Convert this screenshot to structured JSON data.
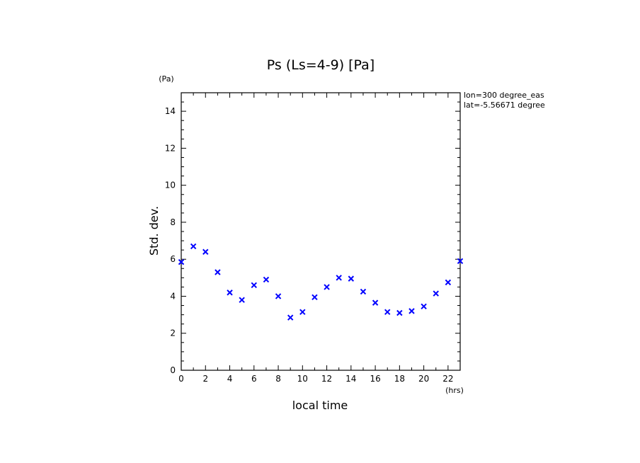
{
  "chart_data": {
    "type": "scatter",
    "title": "Ps (Ls=4-9) [Pa]",
    "xlabel": "local time",
    "ylabel": "Std. dev.",
    "x_unit": "(hrs)",
    "y_unit": "(Pa)",
    "annotations": [
      "lon=300 degree_eas",
      "lat=-5.56671 degree"
    ],
    "xlim": [
      0,
      23
    ],
    "ylim": [
      0,
      15
    ],
    "xticks": [
      0,
      2,
      4,
      6,
      8,
      10,
      12,
      14,
      16,
      18,
      20,
      22
    ],
    "yticks": [
      0,
      2,
      4,
      6,
      8,
      10,
      12,
      14
    ],
    "marker_color": "#0000ff",
    "marker": "x",
    "grid": false,
    "x": [
      0,
      1,
      2,
      3,
      4,
      5,
      6,
      7,
      8,
      9,
      10,
      11,
      12,
      13,
      14,
      15,
      16,
      17,
      18,
      19,
      20,
      21,
      22,
      23
    ],
    "y": [
      5.85,
      6.7,
      6.4,
      5.3,
      4.2,
      3.8,
      4.6,
      4.9,
      4.0,
      2.85,
      3.15,
      3.95,
      4.5,
      5.0,
      4.95,
      4.25,
      3.65,
      3.15,
      3.1,
      3.2,
      3.45,
      4.15,
      4.75,
      5.9
    ]
  }
}
